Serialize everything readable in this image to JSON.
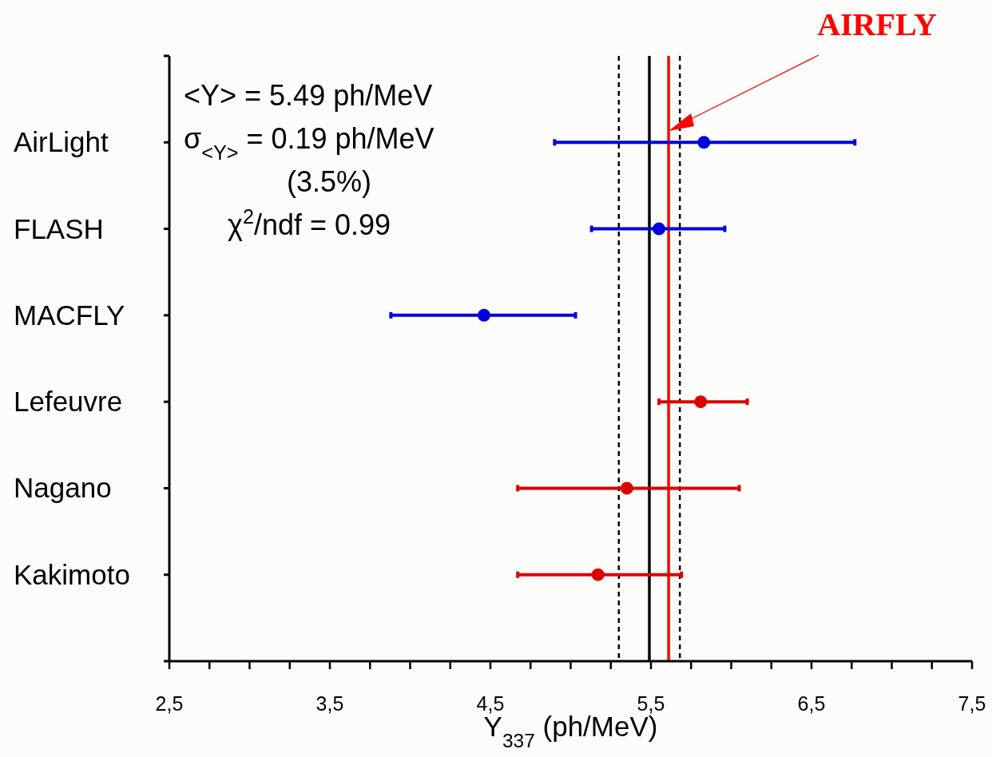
{
  "chart_data": {
    "type": "scatter",
    "orientation": "horizontal",
    "xlabel": "Y$_{337}$ (ph/MeV)",
    "categories": [
      "AirLight",
      "FLASH",
      "MACFLY",
      "Lefeuvre",
      "Nagano",
      "Kakimoto"
    ],
    "series": [
      {
        "color": "#0000dd",
        "values": [
          5.83,
          5.55,
          4.46,
          null,
          null,
          null
        ],
        "errors": [
          [
            4.9,
            6.77
          ],
          [
            5.13,
            5.96
          ],
          [
            3.88,
            5.03
          ],
          null,
          null,
          null
        ]
      },
      {
        "color": "#dd0000",
        "values": [
          null,
          null,
          null,
          5.81,
          5.35,
          5.17
        ],
        "errors": [
          null,
          null,
          null,
          [
            5.55,
            6.1
          ],
          [
            4.67,
            6.05
          ],
          [
            4.67,
            5.69
          ]
        ]
      }
    ],
    "xlim": [
      2.5,
      7.5
    ],
    "xticks": [
      {
        "value": 2.5,
        "label": "2,5"
      },
      {
        "value": 2.75,
        "label": null
      },
      {
        "value": 3,
        "label": null
      },
      {
        "value": 3.25,
        "label": null
      },
      {
        "value": 3.5,
        "label": "3,5"
      },
      {
        "value": 3.75,
        "label": null
      },
      {
        "value": 4,
        "label": null
      },
      {
        "value": 4.25,
        "label": null
      },
      {
        "value": 4.5,
        "label": "4,5"
      },
      {
        "value": 4.75,
        "label": null
      },
      {
        "value": 5,
        "label": null
      },
      {
        "value": 5.25,
        "label": null
      },
      {
        "value": 5.5,
        "label": "5,5"
      },
      {
        "value": 5.75,
        "label": null
      },
      {
        "value": 6,
        "label": null
      },
      {
        "value": 6.25,
        "label": null
      },
      {
        "value": 6.5,
        "label": "6,5"
      },
      {
        "value": 6.75,
        "label": null
      },
      {
        "value": 7,
        "label": null
      },
      {
        "value": 7.25,
        "label": null
      },
      {
        "value": 7.5,
        "label": "7,5"
      }
    ],
    "ref_lines": [
      {
        "axis": "x",
        "value": 5.3,
        "color": "#000000",
        "line_style": "dashed"
      },
      {
        "axis": "x",
        "value": 5.68,
        "color": "#000000",
        "line_style": "dashed"
      },
      {
        "axis": "x",
        "value": 5.49,
        "color": "#000000",
        "line_style": "solid"
      },
      {
        "axis": "x",
        "value": 5.61,
        "color": "#ff0000",
        "line_style": "solid",
        "label": "AIRFLY"
      }
    ],
    "annotations": [
      "<Y> = 5.49 ph/MeV",
      "σ$_{<Y>}$ = 0.19 ph/MeV",
      "(3.5%)",
      "χ$^{2}$/ndf  = 0.99"
    ],
    "marker": "circle",
    "grid": false
  }
}
